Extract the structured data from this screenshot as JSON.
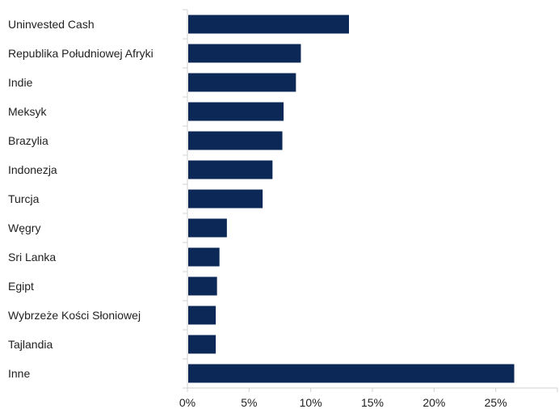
{
  "chart_data": {
    "type": "bar",
    "orientation": "horizontal",
    "categories": [
      "Uninvested Cash",
      "Republika Południowej Afryki",
      "Indie",
      "Meksyk",
      "Brazylia",
      "Indonezja",
      "Turcja",
      "Węgry",
      "Sri Lanka",
      "Egipt",
      "Wybrzeże Kości Słoniowej",
      "Tajlandia",
      "Inne"
    ],
    "values": [
      13.1,
      9.2,
      8.8,
      7.8,
      7.7,
      6.9,
      6.1,
      3.2,
      2.6,
      2.4,
      2.3,
      2.3,
      26.5
    ],
    "xlim": [
      0,
      30
    ],
    "xticks": [
      0,
      5,
      10,
      15,
      20,
      25
    ],
    "tick_format": "%",
    "grid": false,
    "legend": "none",
    "title": "",
    "xlabel": "",
    "ylabel": "",
    "colors": {
      "bar": "#0c2857",
      "axis": "#d0d0d0"
    }
  }
}
